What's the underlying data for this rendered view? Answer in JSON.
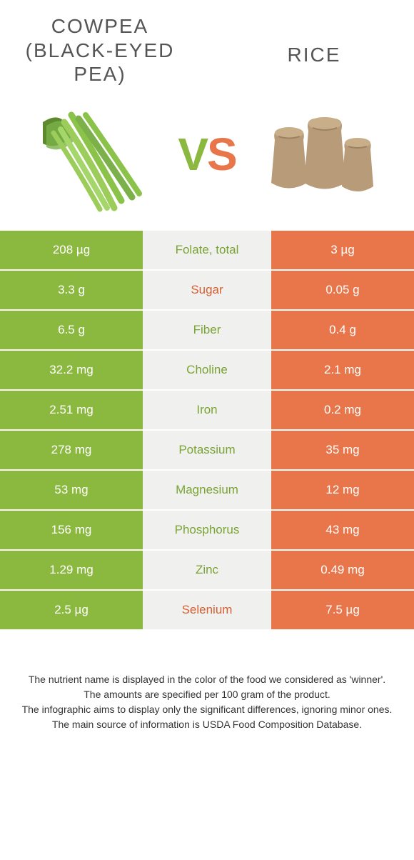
{
  "colors": {
    "left": "#8bb83f",
    "right": "#e9764a",
    "mid_bg": "#f0f0ee",
    "title": "#555555",
    "left_label": "#7aa532",
    "right_label": "#d95f32"
  },
  "typography": {
    "title_fontsize": 28,
    "vs_fontsize": 64,
    "cell_fontsize": 17,
    "footnote_fontsize": 14
  },
  "left_title": "COWPEA (BLACK-EYED PEA)",
  "right_title": "RICE",
  "vs_v": "V",
  "vs_s": "S",
  "rows": [
    {
      "left": "208 µg",
      "label": "Folate, total",
      "right": "3 µg",
      "winner": "left"
    },
    {
      "left": "3.3 g",
      "label": "Sugar",
      "right": "0.05 g",
      "winner": "right"
    },
    {
      "left": "6.5 g",
      "label": "Fiber",
      "right": "0.4 g",
      "winner": "left"
    },
    {
      "left": "32.2 mg",
      "label": "Choline",
      "right": "2.1 mg",
      "winner": "left"
    },
    {
      "left": "2.51 mg",
      "label": "Iron",
      "right": "0.2 mg",
      "winner": "left"
    },
    {
      "left": "278 mg",
      "label": "Potassium",
      "right": "35 mg",
      "winner": "left"
    },
    {
      "left": "53 mg",
      "label": "Magnesium",
      "right": "12 mg",
      "winner": "left"
    },
    {
      "left": "156 mg",
      "label": "Phosphorus",
      "right": "43 mg",
      "winner": "left"
    },
    {
      "left": "1.29 mg",
      "label": "Zinc",
      "right": "0.49 mg",
      "winner": "left"
    },
    {
      "left": "2.5 µg",
      "label": "Selenium",
      "right": "7.5 µg",
      "winner": "right"
    }
  ],
  "footnotes": [
    "The nutrient name is displayed in the color of the food we considered as 'winner'.",
    "The amounts are specified per 100 gram of the product.",
    "The infographic aims to display only the significant differences, ignoring minor ones.",
    "The main source of information is USDA Food Composition Database."
  ]
}
